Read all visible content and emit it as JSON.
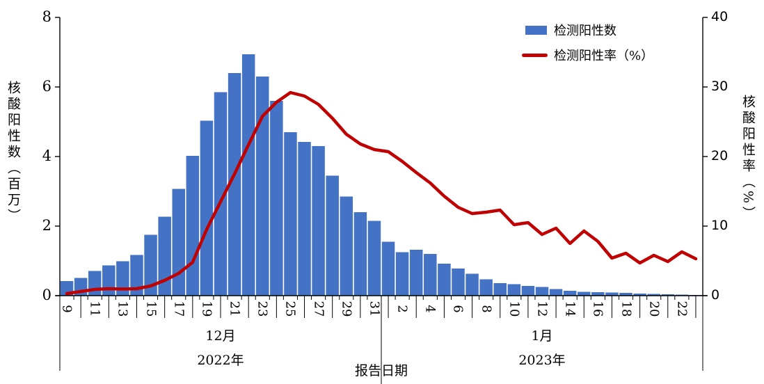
{
  "chart_data": {
    "type": "bar+line",
    "categories": [
      "9",
      "10",
      "11",
      "12",
      "13",
      "14",
      "15",
      "16",
      "17",
      "18",
      "19",
      "20",
      "21",
      "22",
      "23",
      "24",
      "25",
      "26",
      "27",
      "28",
      "29",
      "30",
      "31",
      "1",
      "2",
      "3",
      "4",
      "5",
      "6",
      "7",
      "8",
      "9",
      "10",
      "11",
      "12",
      "13",
      "14",
      "15",
      "16",
      "17",
      "18",
      "19",
      "20",
      "21",
      "22",
      "23"
    ],
    "series": [
      {
        "name": "检测阳性数",
        "type": "bar",
        "axis": "left",
        "color": "#4472C4",
        "values": [
          0.42,
          0.51,
          0.71,
          0.87,
          0.99,
          1.17,
          1.75,
          2.27,
          3.07,
          4.02,
          5.03,
          5.85,
          6.4,
          6.94,
          6.3,
          5.6,
          4.7,
          4.42,
          4.3,
          3.45,
          2.85,
          2.4,
          2.15,
          1.55,
          1.25,
          1.32,
          1.2,
          0.92,
          0.78,
          0.63,
          0.47,
          0.36,
          0.33,
          0.28,
          0.25,
          0.19,
          0.14,
          0.11,
          0.1,
          0.09,
          0.08,
          0.06,
          0.05,
          0.04,
          0.03,
          0.02
        ]
      },
      {
        "name": "检测阳性率（%）",
        "type": "line",
        "axis": "right",
        "color": "#C00000",
        "values": [
          0.3,
          0.6,
          0.9,
          1.0,
          0.95,
          1.0,
          1.4,
          2.2,
          3.2,
          4.8,
          9.5,
          13.5,
          17.5,
          21.7,
          25.8,
          27.8,
          29.2,
          28.7,
          27.5,
          25.5,
          23.2,
          21.8,
          21.0,
          20.7,
          19.3,
          17.7,
          16.2,
          14.3,
          12.7,
          11.8,
          12.0,
          12.3,
          10.2,
          10.5,
          8.8,
          9.7,
          7.5,
          9.3,
          7.8,
          5.4,
          6.1,
          4.7,
          5.8,
          4.9,
          6.3,
          5.3
        ]
      }
    ],
    "left_axis": {
      "title": "核酸阳性数（百万）",
      "ticks": [
        0,
        2,
        4,
        6,
        8
      ],
      "min": 0,
      "max": 8
    },
    "right_axis": {
      "title": "核酸阳性率（%）",
      "ticks": [
        0,
        10,
        20,
        30,
        40
      ],
      "min": 0,
      "max": 40
    },
    "x_axis": {
      "title": "报告日期",
      "label_interval": 2,
      "months": [
        {
          "label": "12月",
          "year": "2022年",
          "days": 23
        },
        {
          "label": "1月",
          "year": "2023年",
          "days": 23
        }
      ]
    },
    "legend": {
      "position": "top-right",
      "items": [
        {
          "label": "检测阳性数",
          "swatch": "bar",
          "color": "#4472C4"
        },
        {
          "label": "检测阳性率（%）",
          "swatch": "line",
          "color": "#C00000"
        }
      ]
    }
  }
}
